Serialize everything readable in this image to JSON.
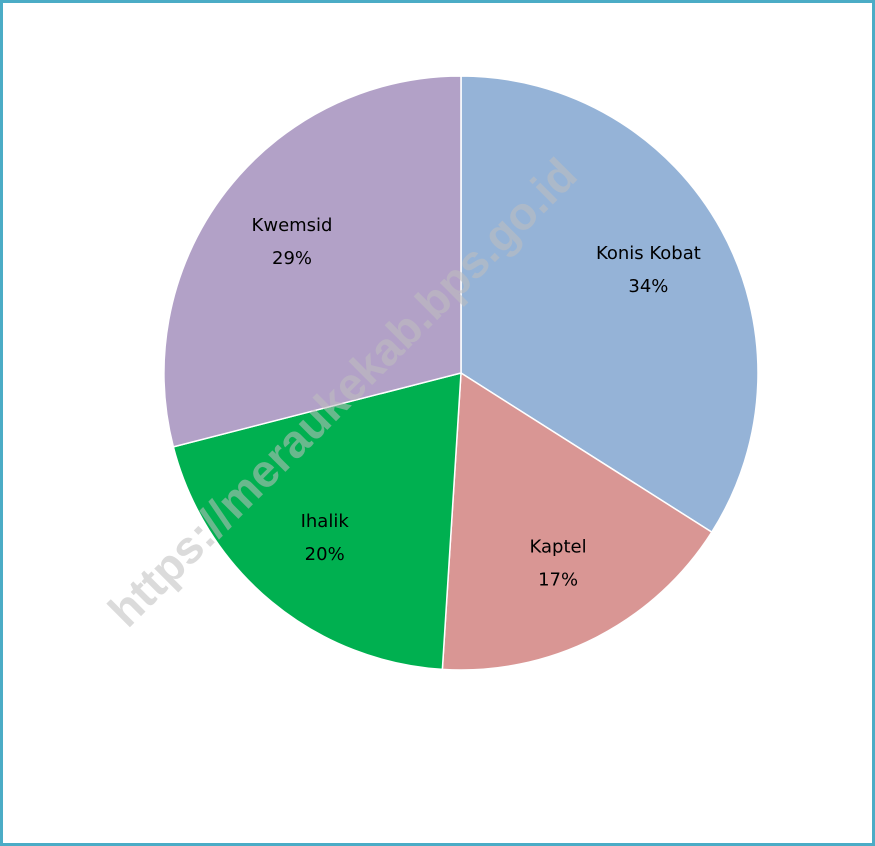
{
  "chart_data": {
    "type": "pie",
    "categories": [
      "Konis Kobat",
      "Kaptel",
      "Ihalik",
      "Kwemsid"
    ],
    "values": [
      34,
      17,
      20,
      29
    ],
    "value_labels": [
      "34%",
      "17%",
      "20%",
      "29%"
    ],
    "colors": [
      "#95b3d7",
      "#d99694",
      "#00b050",
      "#b2a1c7"
    ],
    "watermark": "https://meraukekab.bps.go.id"
  }
}
